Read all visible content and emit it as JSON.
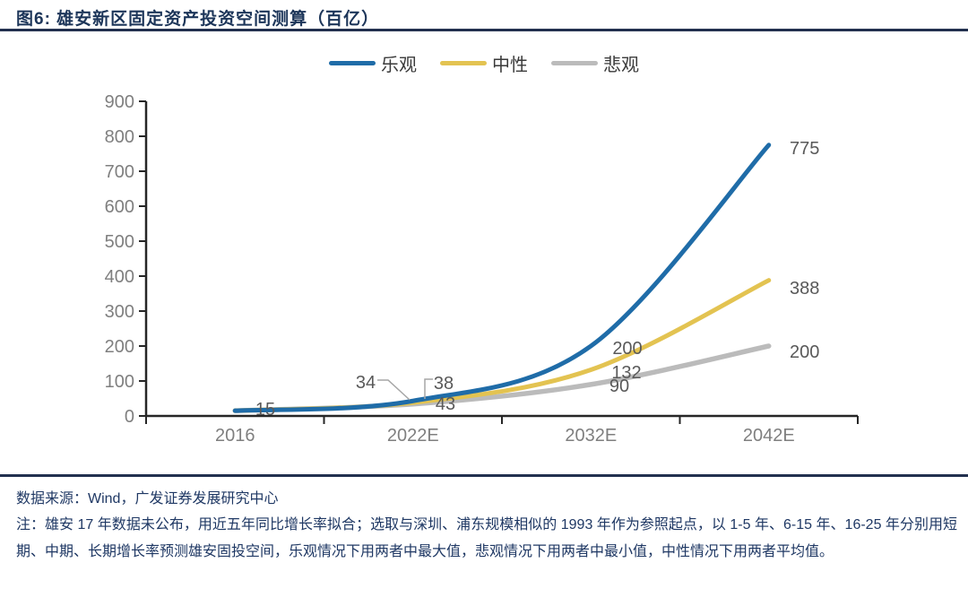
{
  "title": "图6: 雄安新区固定资产投资空间测算（百亿）",
  "source": "数据来源：Wind，广发证券发展研究中心",
  "note": "注：雄安 17 年数据未公布，用近五年同比增长率拟合；选取与深圳、浦东规模相似的 1993 年作为参照起点，以 1-5 年、6-15 年、16-25 年分别用短期、中期、长期增长率预测雄安固投空间，乐观情况下用两者中最大值，悲观情况下用两者中最小值，中性情况下用两者平均值。",
  "chart_data": {
    "type": "line",
    "smoothed": true,
    "title": "雄安新区固定资产投资空间测算（百亿）",
    "categories": [
      "2016",
      "2022E",
      "2032E",
      "2042E"
    ],
    "series": [
      {
        "name": "乐观",
        "color": "#1F6CA8",
        "values": [
          15,
          43,
          200,
          775
        ]
      },
      {
        "name": "中性",
        "color": "#E3C351",
        "values": [
          15,
          38,
          132,
          388
        ]
      },
      {
        "name": "悲观",
        "color": "#BBBBBB",
        "values": [
          15,
          34,
          90,
          200
        ]
      }
    ],
    "ylim": [
      0,
      900
    ],
    "ytick_step": 100,
    "grid": false,
    "legend_position": "top-center",
    "axis_color": "#262626",
    "axis_label_color": "#7F7F7F",
    "data_label_color": "#595959",
    "point_labels": [
      {
        "text": "15",
        "category": "2016",
        "series": "共同起点"
      },
      {
        "text": "34",
        "category": "2022E",
        "series": "悲观"
      },
      {
        "text": "38",
        "category": "2022E",
        "series": "中性"
      },
      {
        "text": "43",
        "category": "2022E",
        "series": "乐观"
      },
      {
        "text": "200",
        "category": "2032E",
        "series": "乐观"
      },
      {
        "text": "132",
        "category": "2032E",
        "series": "中性"
      },
      {
        "text": "90",
        "category": "2032E",
        "series": "悲观"
      },
      {
        "text": "775",
        "category": "2042E",
        "series": "乐观"
      },
      {
        "text": "388",
        "category": "2042E",
        "series": "中性"
      },
      {
        "text": "200",
        "category": "2042E",
        "series": "悲观"
      }
    ]
  }
}
